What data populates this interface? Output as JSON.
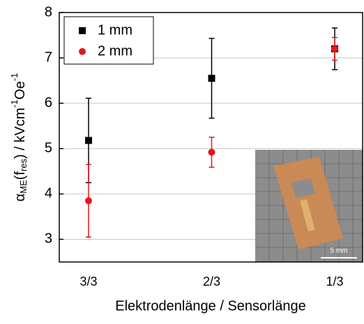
{
  "chart_data": {
    "type": "errorbar",
    "x_label": "Elektrodenlänge / Sensorlänge",
    "y_label": [
      "α",
      "ME",
      "(f",
      "res",
      ") / kVcm",
      "-1",
      "Oe",
      "-1"
    ],
    "categories": [
      "3/3",
      "2/3",
      "1/3"
    ],
    "series": [
      {
        "name": "1 mm",
        "color": "#000000",
        "marker": "square",
        "values": [
          5.18,
          6.55,
          7.2
        ],
        "errors": [
          0.93,
          0.88,
          0.46
        ]
      },
      {
        "name": "2 mm",
        "color": "#e8141c",
        "marker": "circle",
        "values": [
          3.85,
          4.92,
          7.2
        ],
        "errors": [
          0.8,
          0.33,
          0.25
        ]
      }
    ],
    "ylim": [
      2.5,
      8
    ],
    "yticks": [
      3,
      4,
      5,
      6,
      7,
      8
    ],
    "grid": true,
    "legend": "top-left",
    "inset_scale_label": "5 mm"
  }
}
